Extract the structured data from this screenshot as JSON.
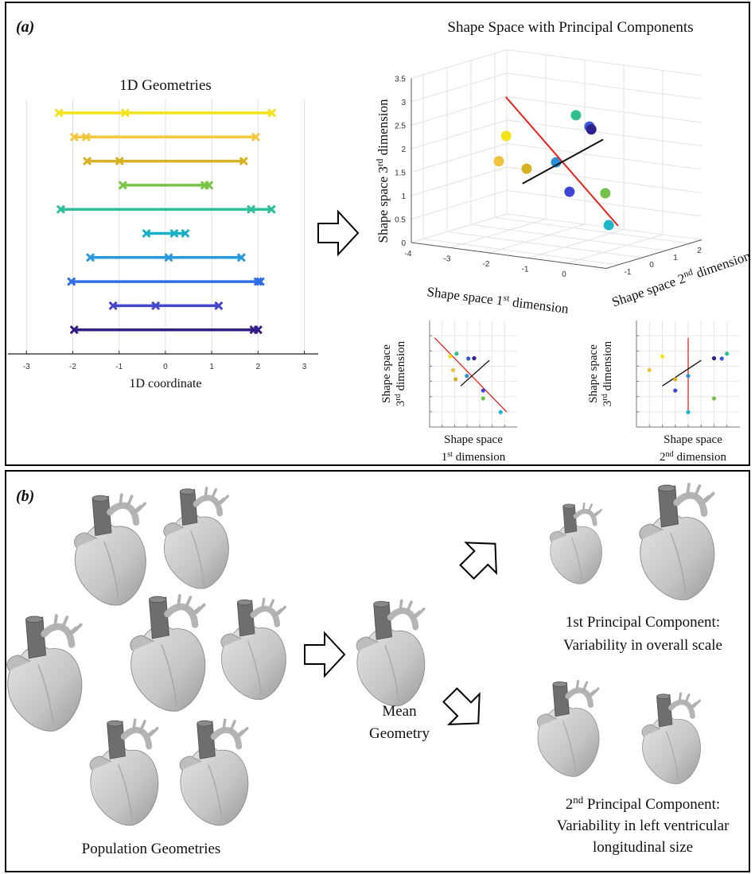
{
  "panel_labels": [
    "(a)",
    "(b)"
  ],
  "chart_data": [
    {
      "type": "segments",
      "title": "1D Geometries",
      "xlabel": "1D coordinate",
      "xlim": [
        -3.4,
        3.3
      ],
      "xticks": [
        -3,
        -2,
        -1,
        0,
        1,
        2,
        3
      ],
      "grid": true,
      "series": [
        {
          "color": "#f2e31b",
          "values": [
            -2.3,
            -0.87,
            2.3
          ]
        },
        {
          "color": "#f4c73c",
          "values": [
            -1.97,
            -1.71,
            1.95
          ]
        },
        {
          "color": "#d8b024",
          "values": [
            -1.69,
            -0.99,
            1.69
          ]
        },
        {
          "color": "#78c545",
          "values": [
            -0.92,
            0.85,
            0.94
          ]
        },
        {
          "color": "#2dbf99",
          "values": [
            -2.26,
            1.85,
            2.29
          ]
        },
        {
          "color": "#17b0c4",
          "values": [
            -0.41,
            0.19,
            0.43
          ]
        },
        {
          "color": "#2a98dc",
          "values": [
            -1.62,
            0.07,
            1.64
          ]
        },
        {
          "color": "#2e6de6",
          "values": [
            -2.03,
            2.0,
            2.05
          ]
        },
        {
          "color": "#4545cc",
          "values": [
            -1.13,
            -0.21,
            1.15
          ]
        },
        {
          "color": "#341c86",
          "values": [
            -1.97,
            1.91,
            2.0
          ]
        }
      ]
    },
    {
      "type": "scatter3d",
      "title": "Shape Space with Principal Components",
      "xlabel": [
        [
          "Shape space 1",
          "st",
          " dimension"
        ]
      ],
      "ylabel": [
        [
          "Shape space 2",
          "nd",
          " dimension"
        ]
      ],
      "zlabel": [
        [
          "Shape space 3",
          "rd",
          " dimension"
        ]
      ],
      "xlim": [
        -4,
        1
      ],
      "ylim": [
        -1.5,
        2.5
      ],
      "zlim": [
        0,
        3.5
      ],
      "xticks": [
        -4,
        -3,
        -2,
        -1,
        0
      ],
      "yticks": [
        -1,
        0,
        1,
        2
      ],
      "zticks": [
        0,
        0.5,
        1,
        1.5,
        2,
        2.5,
        3,
        3.5
      ],
      "grid": true,
      "points": {
        "x": [
          -2.18,
          -2.06,
          -1.96,
          -1.92,
          -1.45,
          -1.22,
          -1.51,
          -0.86,
          -0.86,
          -0.16
        ],
        "y": [
          -0.5,
          -1.0,
          0,
          2,
          1.8,
          1.5,
          0.5,
          0,
          1.5,
          0.5
        ],
        "z": [
          2.32,
          1.87,
          1.57,
          2.41,
          2.25,
          2.26,
          1.68,
          1.2,
          0.94,
          0.49
        ],
        "colors": [
          "#f2e31b",
          "#f0c23b",
          "#d8b024",
          "#2fbf8c",
          "#3b5ad9",
          "#2e1f8f",
          "#2a8fd8",
          "#3f43d6",
          "#72c24a",
          "#1fb6c9"
        ]
      },
      "lines": [
        {
          "color": "#e8211d",
          "x": [
            -2.8,
            0.08
          ],
          "y": [
            0.5,
            0.5
          ],
          "z": [
            2.93,
            0.5
          ]
        },
        {
          "color": "#111111",
          "x": [
            -1.76,
            -0.61
          ],
          "y": [
            -0.5,
            1.0
          ],
          "z": [
            1.35,
            2.19
          ]
        }
      ]
    },
    {
      "type": "projection",
      "xlabel": [
        [
          "Shape space"
        ],
        [
          "1",
          "st",
          " dimension"
        ]
      ],
      "ylabel": [
        [
          "Shape space"
        ],
        [
          "3",
          "rd",
          " dimension"
        ]
      ],
      "xlim": [
        -3,
        0.5
      ],
      "ylim": [
        0,
        3.5
      ],
      "xticks": [
        -2.5,
        -2,
        -1.5,
        -1,
        -0.5,
        0
      ],
      "yticks": [
        0.5,
        1,
        1.5,
        2,
        2.5,
        3
      ],
      "grid": true
    },
    {
      "type": "projection",
      "xlabel": [
        [
          "Shape space"
        ],
        [
          "2",
          "nd",
          " dimension"
        ]
      ],
      "ylabel": [
        [
          "Shape space"
        ],
        [
          "3",
          "rd",
          " dimension"
        ]
      ],
      "xlim": [
        -1.5,
        2.5
      ],
      "ylim": [
        0,
        3.5
      ],
      "xticks": [
        -1,
        -0.5,
        0,
        0.5,
        1,
        1.5,
        2
      ],
      "yticks": [
        0.5,
        1,
        1.5,
        2,
        2.5,
        3
      ],
      "grid": true
    }
  ],
  "panel_b": {
    "population": [
      [
        "Population Geometries"
      ]
    ],
    "mean": [
      [
        "Mean"
      ],
      [
        "Geometry"
      ]
    ],
    "pc1": [
      [
        "1st Principal Component:"
      ],
      [
        "Variability in overall scale"
      ]
    ],
    "pc2": [
      [
        "2",
        "nd",
        " Principal Component:"
      ],
      [
        "Variability in left ventricular"
      ],
      [
        "longitudinal size"
      ]
    ]
  }
}
